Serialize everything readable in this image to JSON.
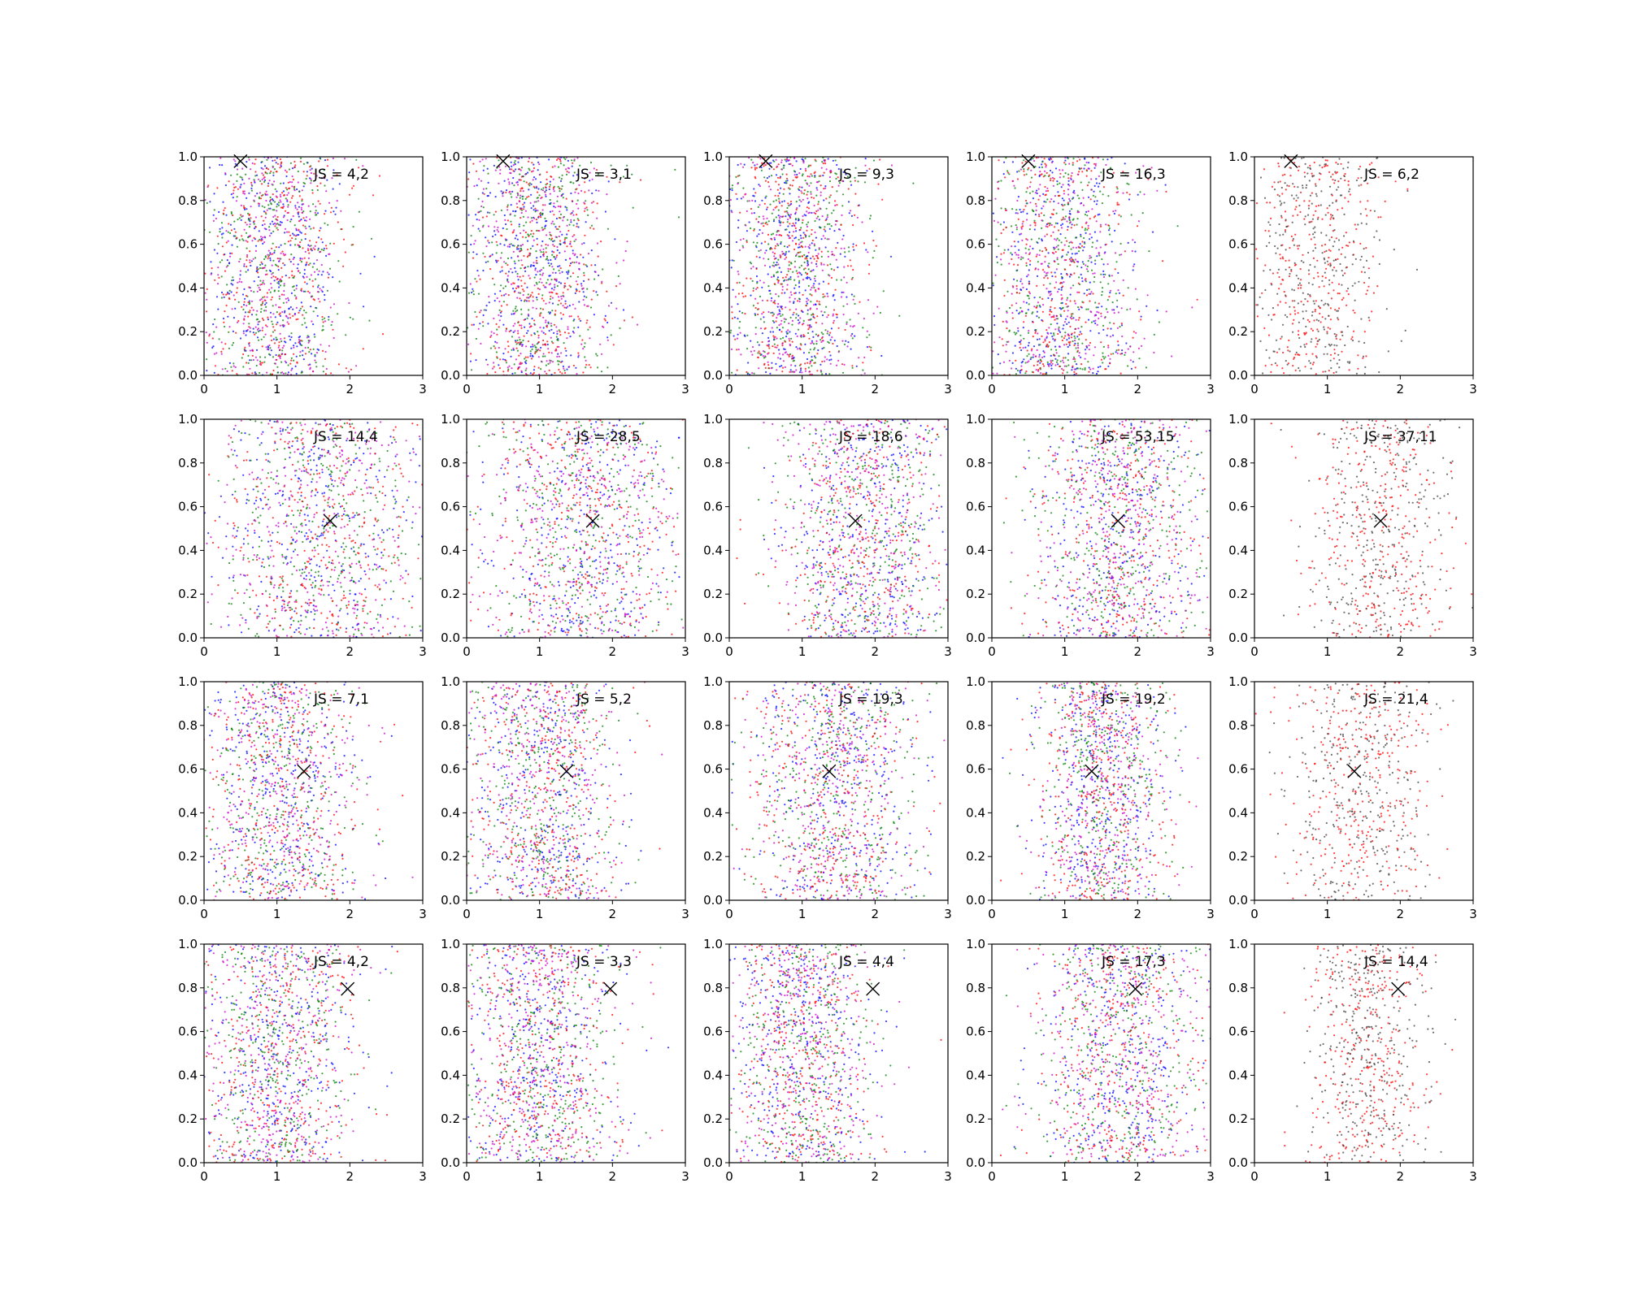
{
  "chart_data": {
    "type": "scatter",
    "grid": false,
    "layout": "4 rows x 5 columns of panels",
    "xlim": [
      0,
      3
    ],
    "ylim": [
      0,
      1
    ],
    "x_ticks": [
      "0",
      "1",
      "2",
      "3"
    ],
    "y_ticks": [
      "0.0",
      "0.2",
      "0.4",
      "0.6",
      "0.8",
      "1.0"
    ],
    "colors": {
      "blue": "#0000ff",
      "green": "#008000",
      "red": "#ff0000",
      "magenta": "#cc00cc",
      "gray": "#404040",
      "marker": "#000000"
    },
    "rows": [
      {
        "marker": {
          "x": 0.5,
          "y": 0.98
        },
        "panels": [
          {
            "label": "JS = 4,2",
            "x_center": 0.95,
            "x_spread": 0.5,
            "series": [
              "blue",
              "green",
              "red",
              "magenta"
            ]
          },
          {
            "label": "JS = 3,1",
            "x_center": 0.95,
            "x_spread": 0.5,
            "series": [
              "blue",
              "green",
              "red",
              "magenta"
            ]
          },
          {
            "label": "JS = 9,3",
            "x_center": 0.9,
            "x_spread": 0.5,
            "series": [
              "blue",
              "green",
              "red",
              "magenta"
            ]
          },
          {
            "label": "JS = 16,3",
            "x_center": 0.95,
            "x_spread": 0.55,
            "series": [
              "blue",
              "green",
              "red",
              "magenta"
            ]
          },
          {
            "label": "JS = 6,2",
            "x_center": 0.85,
            "x_spread": 0.45,
            "series": [
              "red",
              "gray"
            ]
          }
        ]
      },
      {
        "marker": {
          "x": 1.73,
          "y": 0.535
        },
        "panels": [
          {
            "label": "JS = 14,4",
            "x_center": 1.55,
            "x_spread": 0.75,
            "series": [
              "blue",
              "green",
              "red",
              "magenta"
            ]
          },
          {
            "label": "JS = 28,5",
            "x_center": 1.6,
            "x_spread": 0.7,
            "series": [
              "blue",
              "green",
              "red",
              "magenta"
            ]
          },
          {
            "label": "JS = 18,6",
            "x_center": 1.85,
            "x_spread": 0.6,
            "series": [
              "blue",
              "green",
              "red",
              "magenta"
            ]
          },
          {
            "label": "JS = 53,15",
            "x_center": 1.75,
            "x_spread": 0.6,
            "series": [
              "blue",
              "green",
              "red",
              "magenta"
            ]
          },
          {
            "label": "JS = 37,11",
            "x_center": 1.75,
            "x_spread": 0.5,
            "series": [
              "red",
              "gray"
            ]
          }
        ]
      },
      {
        "marker": {
          "x": 1.37,
          "y": 0.59
        },
        "panels": [
          {
            "label": "JS = 7,1",
            "x_center": 1.0,
            "x_spread": 0.55,
            "series": [
              "blue",
              "green",
              "red",
              "magenta"
            ]
          },
          {
            "label": "JS = 5,2",
            "x_center": 1.0,
            "x_spread": 0.55,
            "series": [
              "blue",
              "green",
              "red",
              "magenta"
            ]
          },
          {
            "label": "JS = 19,3",
            "x_center": 1.45,
            "x_spread": 0.6,
            "series": [
              "blue",
              "green",
              "red",
              "magenta"
            ]
          },
          {
            "label": "JS = 19,2",
            "x_center": 1.5,
            "x_spread": 0.45,
            "series": [
              "blue",
              "green",
              "red",
              "magenta"
            ]
          },
          {
            "label": "JS = 21,4",
            "x_center": 1.45,
            "x_spread": 0.5,
            "series": [
              "red",
              "gray"
            ]
          }
        ]
      },
      {
        "marker": {
          "x": 1.97,
          "y": 0.795
        },
        "panels": [
          {
            "label": "JS = 4,2",
            "x_center": 1.0,
            "x_spread": 0.55,
            "series": [
              "blue",
              "green",
              "red",
              "magenta"
            ]
          },
          {
            "label": "JS = 3,3",
            "x_center": 1.0,
            "x_spread": 0.55,
            "series": [
              "blue",
              "green",
              "red",
              "magenta"
            ]
          },
          {
            "label": "JS = 4,4",
            "x_center": 1.0,
            "x_spread": 0.5,
            "series": [
              "blue",
              "green",
              "red",
              "magenta"
            ]
          },
          {
            "label": "JS = 17,3",
            "x_center": 1.75,
            "x_spread": 0.6,
            "series": [
              "blue",
              "green",
              "red",
              "magenta"
            ]
          },
          {
            "label": "JS = 14,4",
            "x_center": 1.55,
            "x_spread": 0.4,
            "series": [
              "red",
              "gray"
            ]
          }
        ]
      }
    ]
  }
}
